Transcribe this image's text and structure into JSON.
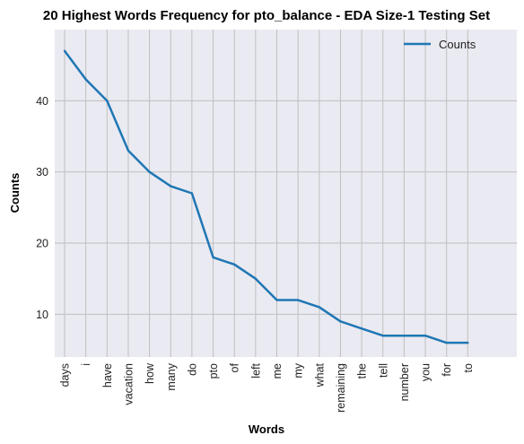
{
  "chart_data": {
    "type": "line",
    "title": "20 Highest Words Frequency for pto_balance - EDA Size-1 Testing Set",
    "xlabel": "Words",
    "ylabel": "Counts",
    "categories": [
      "days",
      "i",
      "have",
      "vacation",
      "how",
      "many",
      "do",
      "pto",
      "of",
      "left",
      "me",
      "my",
      "what",
      "remaining",
      "the",
      "tell",
      "number",
      "you",
      "for",
      "to"
    ],
    "series": [
      {
        "name": "Counts",
        "values": [
          47,
          43,
          40,
          33,
          30,
          28,
          27,
          18,
          17,
          15,
          12,
          12,
          11,
          9,
          8,
          7,
          7,
          7,
          6,
          6
        ],
        "color": "#1f77b4"
      }
    ],
    "yticks": [
      10,
      20,
      30,
      40
    ],
    "ylim": [
      4,
      50
    ],
    "grid": true,
    "legend_position": "top-right",
    "colors": {
      "plot_background": "#eaeaf2",
      "grid": "#bfbfbf",
      "line": "#1f77b4"
    }
  }
}
